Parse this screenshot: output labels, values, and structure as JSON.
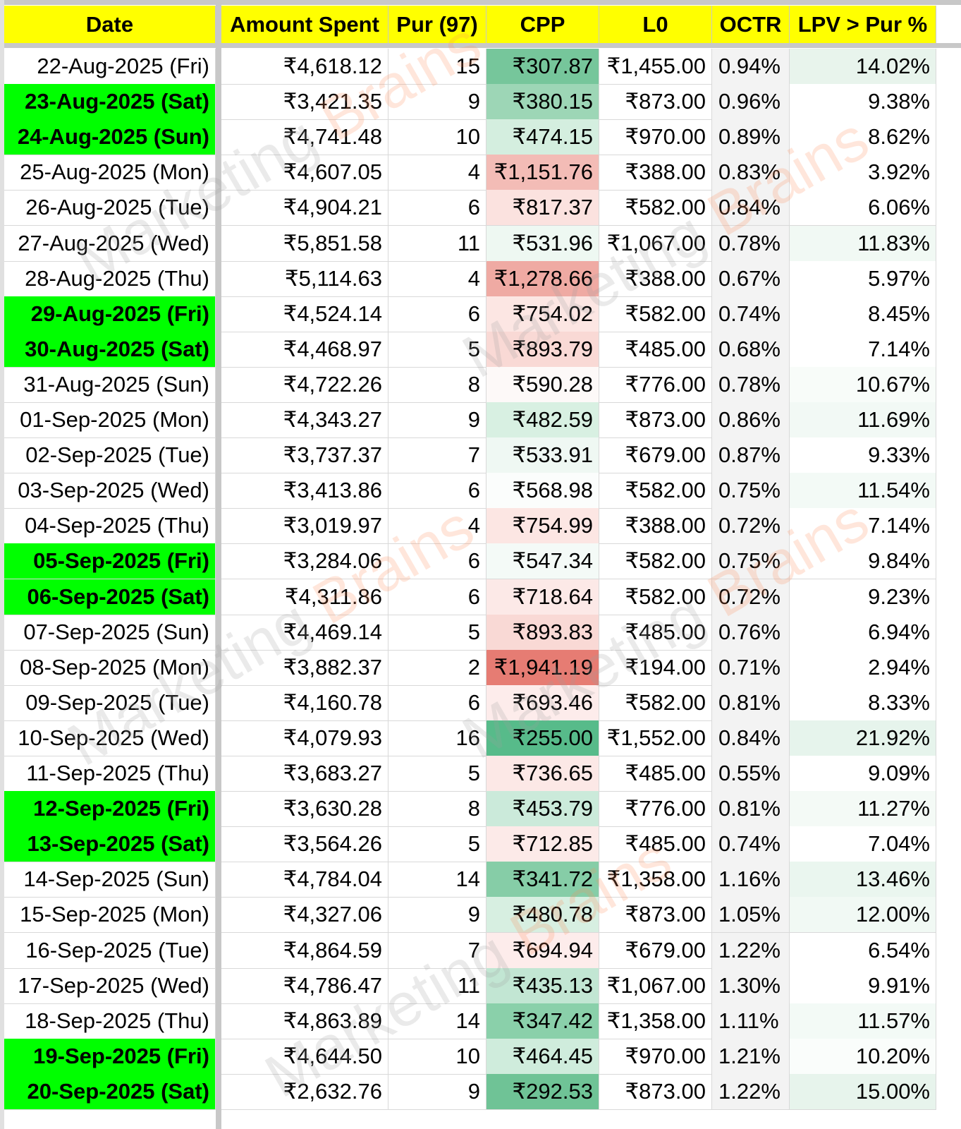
{
  "headers": [
    "Date",
    "Amount Spent",
    "Pur (97)",
    "CPP",
    "L0",
    "OCTR",
    "LPV > Pur %"
  ],
  "watermark": {
    "first": "Marketing ",
    "second": "Brains"
  },
  "colors": {
    "header": "#ffff00",
    "weekend": "#00ff00"
  },
  "rows": [
    {
      "date": "22-Aug-2025 (Fri)",
      "spent": "₹4,618.12",
      "pur": "15",
      "cpp": "₹307.87",
      "l0": "₹1,455.00",
      "octr": "0.94%",
      "lpv": "14.02%",
      "hl": false,
      "cppColor": "#76c69b",
      "lpvColor": "#e8f4ec"
    },
    {
      "date": "23-Aug-2025 (Sat)",
      "spent": "₹3,421.35",
      "pur": "9",
      "cpp": "₹380.15",
      "l0": "₹873.00",
      "octr": "0.96%",
      "lpv": "9.38%",
      "hl": true,
      "cppColor": "#9dd6b6",
      "lpvColor": "#ffffff"
    },
    {
      "date": "24-Aug-2025 (Sun)",
      "spent": "₹4,741.48",
      "pur": "10",
      "cpp": "₹474.15",
      "l0": "₹970.00",
      "octr": "0.89%",
      "lpv": "8.62%",
      "hl": true,
      "cppColor": "#d4eedf",
      "lpvColor": "#ffffff"
    },
    {
      "date": "25-Aug-2025 (Mon)",
      "spent": "₹4,607.05",
      "pur": "4",
      "cpp": "₹1,151.76",
      "l0": "₹388.00",
      "octr": "0.83%",
      "lpv": "3.92%",
      "hl": false,
      "cppColor": "#f3bcb6",
      "lpvColor": "#ffffff"
    },
    {
      "date": "26-Aug-2025 (Tue)",
      "spent": "₹4,904.21",
      "pur": "6",
      "cpp": "₹817.37",
      "l0": "₹582.00",
      "octr": "0.84%",
      "lpv": "6.06%",
      "hl": false,
      "cppColor": "#fbe2df",
      "lpvColor": "#ffffff"
    },
    {
      "date": "27-Aug-2025 (Wed)",
      "spent": "₹5,851.58",
      "pur": "11",
      "cpp": "₹531.96",
      "l0": "₹1,067.00",
      "octr": "0.78%",
      "lpv": "11.83%",
      "hl": false,
      "cppColor": "#eef8f2",
      "lpvColor": "#f1f9f4"
    },
    {
      "date": "28-Aug-2025 (Thu)",
      "spent": "₹5,114.63",
      "pur": "4",
      "cpp": "₹1,278.66",
      "l0": "₹388.00",
      "octr": "0.67%",
      "lpv": "5.97%",
      "hl": false,
      "cppColor": "#efaaa3",
      "lpvColor": "#ffffff"
    },
    {
      "date": "29-Aug-2025 (Fri)",
      "spent": "₹4,524.14",
      "pur": "6",
      "cpp": "₹754.02",
      "l0": "₹582.00",
      "octr": "0.74%",
      "lpv": "8.45%",
      "hl": true,
      "cppColor": "#fce6e3",
      "lpvColor": "#ffffff"
    },
    {
      "date": "30-Aug-2025 (Sat)",
      "spent": "₹4,468.97",
      "pur": "5",
      "cpp": "₹893.79",
      "l0": "₹485.00",
      "octr": "0.68%",
      "lpv": "7.14%",
      "hl": true,
      "cppColor": "#f9d9d5",
      "lpvColor": "#ffffff"
    },
    {
      "date": "31-Aug-2025 (Sun)",
      "spent": "₹4,722.26",
      "pur": "8",
      "cpp": "₹590.28",
      "l0": "₹776.00",
      "octr": "0.78%",
      "lpv": "10.67%",
      "hl": false,
      "cppColor": "#fdf9f8",
      "lpvColor": "#f8fcf9"
    },
    {
      "date": "01-Sep-2025 (Mon)",
      "spent": "₹4,343.27",
      "pur": "9",
      "cpp": "₹482.59",
      "l0": "₹873.00",
      "octr": "0.86%",
      "lpv": "11.69%",
      "hl": false,
      "cppColor": "#d8f0e2",
      "lpvColor": "#f2f9f5"
    },
    {
      "date": "02-Sep-2025 (Tue)",
      "spent": "₹3,737.37",
      "pur": "7",
      "cpp": "₹533.91",
      "l0": "₹679.00",
      "octr": "0.87%",
      "lpv": "9.33%",
      "hl": false,
      "cppColor": "#eff8f3",
      "lpvColor": "#ffffff"
    },
    {
      "date": "03-Sep-2025 (Wed)",
      "spent": "₹3,413.86",
      "pur": "6",
      "cpp": "₹568.98",
      "l0": "₹582.00",
      "octr": "0.75%",
      "lpv": "11.54%",
      "hl": false,
      "cppColor": "#fbfdfc",
      "lpvColor": "#f3faf6"
    },
    {
      "date": "04-Sep-2025 (Thu)",
      "spent": "₹3,019.97",
      "pur": "4",
      "cpp": "₹754.99",
      "l0": "₹388.00",
      "octr": "0.72%",
      "lpv": "7.14%",
      "hl": false,
      "cppColor": "#fce6e3",
      "lpvColor": "#ffffff"
    },
    {
      "date": "05-Sep-2025 (Fri)",
      "spent": "₹3,284.06",
      "pur": "6",
      "cpp": "₹547.34",
      "l0": "₹582.00",
      "octr": "0.75%",
      "lpv": "9.84%",
      "hl": true,
      "cppColor": "#f4faf7",
      "lpvColor": "#ffffff"
    },
    {
      "date": "06-Sep-2025 (Sat)",
      "spent": "₹4,311.86",
      "pur": "6",
      "cpp": "₹718.64",
      "l0": "₹582.00",
      "octr": "0.72%",
      "lpv": "9.23%",
      "hl": true,
      "cppColor": "#fce9e7",
      "lpvColor": "#ffffff"
    },
    {
      "date": "07-Sep-2025 (Sun)",
      "spent": "₹4,469.14",
      "pur": "5",
      "cpp": "₹893.83",
      "l0": "₹485.00",
      "octr": "0.76%",
      "lpv": "6.94%",
      "hl": false,
      "cppColor": "#f9d9d5",
      "lpvColor": "#ffffff"
    },
    {
      "date": "08-Sep-2025 (Mon)",
      "spent": "₹3,882.37",
      "pur": "2",
      "cpp": "₹1,941.19",
      "l0": "₹194.00",
      "octr": "0.71%",
      "lpv": "2.94%",
      "hl": false,
      "cppColor": "#e67c73",
      "lpvColor": "#ffffff"
    },
    {
      "date": "09-Sep-2025 (Tue)",
      "spent": "₹4,160.78",
      "pur": "6",
      "cpp": "₹693.46",
      "l0": "₹582.00",
      "octr": "0.81%",
      "lpv": "8.33%",
      "hl": false,
      "cppColor": "#fdeceb",
      "lpvColor": "#ffffff"
    },
    {
      "date": "10-Sep-2025 (Wed)",
      "spent": "₹4,079.93",
      "pur": "16",
      "cpp": "₹255.00",
      "l0": "₹1,552.00",
      "octr": "0.84%",
      "lpv": "21.92%",
      "hl": false,
      "cppColor": "#57bb8a",
      "lpvColor": "#e6f4ec"
    },
    {
      "date": "11-Sep-2025 (Thu)",
      "spent": "₹3,683.27",
      "pur": "5",
      "cpp": "₹736.65",
      "l0": "₹485.00",
      "octr": "0.55%",
      "lpv": "9.09%",
      "hl": false,
      "cppColor": "#fce8e6",
      "lpvColor": "#ffffff"
    },
    {
      "date": "12-Sep-2025 (Fri)",
      "spent": "₹3,630.28",
      "pur": "8",
      "cpp": "₹453.79",
      "l0": "₹776.00",
      "octr": "0.81%",
      "lpv": "11.27%",
      "hl": true,
      "cppColor": "#cbeada",
      "lpvColor": "#f4faf6"
    },
    {
      "date": "13-Sep-2025 (Sat)",
      "spent": "₹3,564.26",
      "pur": "5",
      "cpp": "₹712.85",
      "l0": "₹485.00",
      "octr": "0.74%",
      "lpv": "7.04%",
      "hl": true,
      "cppColor": "#fceae8",
      "lpvColor": "#ffffff"
    },
    {
      "date": "14-Sep-2025 (Sun)",
      "spent": "₹4,784.04",
      "pur": "14",
      "cpp": "₹341.72",
      "l0": "₹1,358.00",
      "octr": "1.16%",
      "lpv": "13.46%",
      "hl": false,
      "cppColor": "#86cda7",
      "lpvColor": "#eaf6ef"
    },
    {
      "date": "15-Sep-2025 (Mon)",
      "spent": "₹4,327.06",
      "pur": "9",
      "cpp": "₹480.78",
      "l0": "₹873.00",
      "octr": "1.05%",
      "lpv": "12.00%",
      "hl": false,
      "cppColor": "#d7efe1",
      "lpvColor": "#f1f9f4"
    },
    {
      "date": "16-Sep-2025 (Tue)",
      "spent": "₹4,864.59",
      "pur": "7",
      "cpp": "₹694.94",
      "l0": "₹679.00",
      "octr": "1.22%",
      "lpv": "6.54%",
      "hl": false,
      "cppColor": "#fdeceb",
      "lpvColor": "#ffffff"
    },
    {
      "date": "17-Sep-2025 (Wed)",
      "spent": "₹4,786.47",
      "pur": "11",
      "cpp": "₹435.13",
      "l0": "₹1,067.00",
      "octr": "1.30%",
      "lpv": "9.91%",
      "hl": false,
      "cppColor": "#c2e6d3",
      "lpvColor": "#ffffff"
    },
    {
      "date": "18-Sep-2025 (Thu)",
      "spent": "₹4,863.89",
      "pur": "14",
      "cpp": "₹347.42",
      "l0": "₹1,358.00",
      "octr": "1.11%",
      "lpv": "11.57%",
      "hl": false,
      "cppColor": "#8ad0aa",
      "lpvColor": "#f3faf6"
    },
    {
      "date": "19-Sep-2025 (Fri)",
      "spent": "₹4,644.50",
      "pur": "10",
      "cpp": "₹464.45",
      "l0": "₹970.00",
      "octr": "1.21%",
      "lpv": "10.20%",
      "hl": true,
      "cppColor": "#cfecdc",
      "lpvColor": "#fafdfb"
    },
    {
      "date": "20-Sep-2025 (Sat)",
      "spent": "₹2,632.76",
      "pur": "9",
      "cpp": "₹292.53",
      "l0": "₹873.00",
      "octr": "1.22%",
      "lpv": "15.00%",
      "hl": true,
      "cppColor": "#6fc396",
      "lpvColor": "#e7f4ec"
    }
  ]
}
